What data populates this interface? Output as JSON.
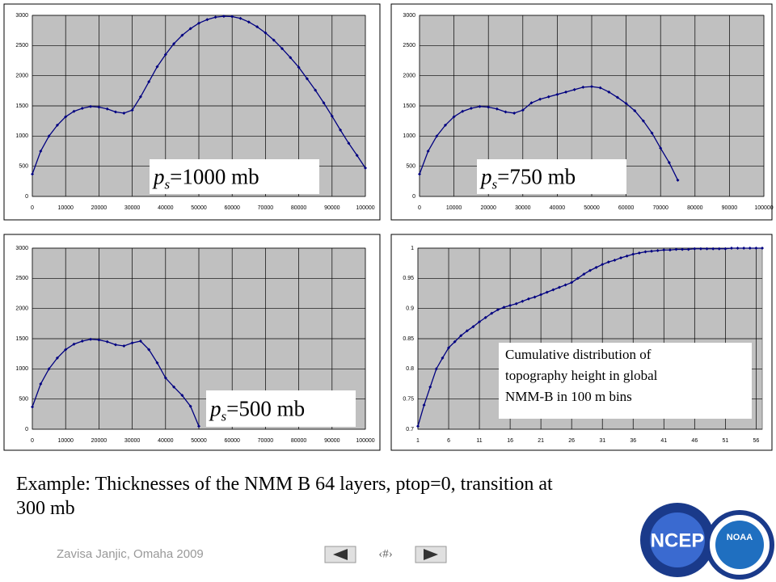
{
  "chart_data": [
    {
      "type": "line",
      "color": "#000080",
      "annotation": {
        "symbol": "p",
        "subscript": "s",
        "text": "=1000 mb"
      },
      "x": [
        0,
        2500,
        5000,
        7500,
        10000,
        12500,
        15000,
        17500,
        20000,
        22500,
        25000,
        27500,
        30000,
        32500,
        35000,
        37500,
        40000,
        42500,
        45000,
        47500,
        50000,
        52500,
        55000,
        57500,
        60000,
        62500,
        65000,
        67500,
        70000,
        72500,
        75000,
        77500,
        80000,
        82500,
        85000,
        87500,
        90000,
        92500,
        95000,
        97500,
        100000
      ],
      "values": [
        370,
        750,
        1000,
        1180,
        1320,
        1410,
        1460,
        1490,
        1480,
        1450,
        1400,
        1380,
        1430,
        1650,
        1900,
        2150,
        2350,
        2530,
        2670,
        2780,
        2870,
        2930,
        2970,
        2985,
        2980,
        2950,
        2890,
        2810,
        2710,
        2590,
        2450,
        2300,
        2140,
        1950,
        1760,
        1550,
        1330,
        1100,
        880,
        680,
        470
      ],
      "xlim": [
        0,
        100000
      ],
      "xticks": [
        0,
        10000,
        20000,
        30000,
        40000,
        50000,
        60000,
        70000,
        80000,
        90000,
        100000
      ],
      "ylim": [
        0,
        3000
      ],
      "yticks": [
        0,
        500,
        1000,
        1500,
        2000,
        2500,
        3000
      ],
      "grid": true
    },
    {
      "type": "line",
      "color": "#000080",
      "annotation": {
        "symbol": "p",
        "subscript": "s",
        "text": "=750 mb"
      },
      "x": [
        0,
        2500,
        5000,
        7500,
        10000,
        12500,
        15000,
        17500,
        20000,
        22500,
        25000,
        27500,
        30000,
        32500,
        35000,
        37500,
        40000,
        42500,
        45000,
        47500,
        50000,
        52500,
        55000,
        57500,
        60000,
        62500,
        65000,
        67500,
        70000,
        72500,
        75000
      ],
      "values": [
        370,
        750,
        1000,
        1180,
        1320,
        1410,
        1460,
        1490,
        1480,
        1450,
        1400,
        1380,
        1430,
        1550,
        1610,
        1650,
        1690,
        1730,
        1770,
        1810,
        1820,
        1800,
        1730,
        1640,
        1540,
        1420,
        1250,
        1050,
        800,
        560,
        270
      ],
      "xlim": [
        0,
        100000
      ],
      "xticks": [
        0,
        10000,
        20000,
        30000,
        40000,
        50000,
        60000,
        70000,
        80000,
        90000,
        100000
      ],
      "ylim": [
        0,
        3000
      ],
      "yticks": [
        0,
        500,
        1000,
        1500,
        2000,
        2500,
        3000
      ],
      "grid": true
    },
    {
      "type": "line",
      "color": "#000080",
      "annotation": {
        "symbol": "p",
        "subscript": "s",
        "text": "=500 mb"
      },
      "x": [
        0,
        2500,
        5000,
        7500,
        10000,
        12500,
        15000,
        17500,
        20000,
        22500,
        25000,
        27500,
        30000,
        32500,
        35000,
        37500,
        40000,
        42500,
        45000,
        47500,
        50000
      ],
      "values": [
        370,
        750,
        1000,
        1180,
        1320,
        1410,
        1460,
        1490,
        1480,
        1450,
        1400,
        1380,
        1430,
        1460,
        1320,
        1100,
        850,
        700,
        560,
        380,
        50
      ],
      "xlim": [
        0,
        100000
      ],
      "xticks": [
        0,
        10000,
        20000,
        30000,
        40000,
        50000,
        60000,
        70000,
        80000,
        90000,
        100000
      ],
      "ylim": [
        0,
        3000
      ],
      "yticks": [
        0,
        500,
        1000,
        1500,
        2000,
        2500,
        3000
      ],
      "grid": true
    },
    {
      "type": "line",
      "color": "#000080",
      "annotation_lines": [
        "Cumulative distribution of",
        "topography height in global",
        "NMM-B in 100 m bins"
      ],
      "x": [
        1,
        2,
        3,
        4,
        5,
        6,
        7,
        8,
        9,
        10,
        11,
        12,
        13,
        14,
        15,
        16,
        17,
        18,
        19,
        20,
        21,
        22,
        23,
        24,
        25,
        26,
        27,
        28,
        29,
        30,
        31,
        32,
        33,
        34,
        35,
        36,
        37,
        38,
        39,
        40,
        41,
        42,
        43,
        44,
        45,
        46,
        47,
        48,
        49,
        50,
        51,
        52,
        53,
        54,
        55,
        56,
        57
      ],
      "values": [
        0.705,
        0.74,
        0.77,
        0.8,
        0.818,
        0.835,
        0.845,
        0.855,
        0.863,
        0.87,
        0.878,
        0.885,
        0.892,
        0.898,
        0.902,
        0.905,
        0.908,
        0.912,
        0.916,
        0.919,
        0.923,
        0.927,
        0.931,
        0.935,
        0.939,
        0.943,
        0.95,
        0.957,
        0.963,
        0.968,
        0.973,
        0.977,
        0.98,
        0.984,
        0.987,
        0.99,
        0.992,
        0.994,
        0.995,
        0.996,
        0.997,
        0.997,
        0.998,
        0.998,
        0.998,
        0.999,
        0.999,
        0.999,
        0.999,
        0.999,
        0.999,
        1,
        1,
        1,
        1,
        1,
        1
      ],
      "xlim": [
        1,
        57
      ],
      "xticks": [
        1,
        6,
        11,
        16,
        21,
        26,
        31,
        36,
        41,
        46,
        51,
        56
      ],
      "ylim": [
        0.7,
        1
      ],
      "yticks": [
        0.7,
        0.75,
        0.8,
        0.85,
        0.9,
        0.95,
        1
      ],
      "grid": true
    }
  ],
  "caption": "Example:  Thicknesses of the NMM B 64 layers, ptop=0, transition at 300 mb",
  "footer": {
    "author": "Zavisa Janjic, Omaha 2009",
    "page": "‹#›"
  },
  "logos": [
    "NCEP",
    "NOAA"
  ]
}
